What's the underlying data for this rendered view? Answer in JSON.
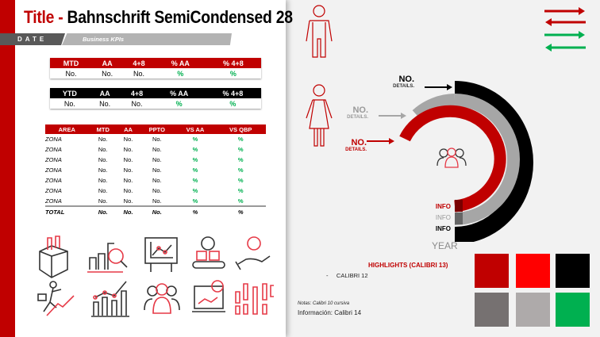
{
  "title": {
    "prefix": "Title - ",
    "main": "Bahnschrift SemiCondensed 28"
  },
  "header": {
    "date": "DATE",
    "subtitle": "Business KPIs"
  },
  "mtd_table": {
    "headers": [
      "MTD",
      "AA",
      "4+8",
      "% AA",
      "% 4+8"
    ],
    "row": [
      "No.",
      "No.",
      "No.",
      "%",
      "%"
    ]
  },
  "ytd_table": {
    "headers": [
      "YTD",
      "AA",
      "4+8",
      "% AA",
      "% 4+8"
    ],
    "row": [
      "No.",
      "No.",
      "No.",
      "%",
      "%"
    ]
  },
  "area_table": {
    "headers": [
      "AREA",
      "MTD",
      "AA",
      "PPTO",
      "VS AA",
      "VS QBP"
    ],
    "rows": [
      [
        "ZONA",
        "No.",
        "No.",
        "No.",
        "%",
        "%"
      ],
      [
        "ZONA",
        "No.",
        "No.",
        "No.",
        "%",
        "%"
      ],
      [
        "ZONA",
        "No.",
        "No.",
        "No.",
        "%",
        "%"
      ],
      [
        "ZONA",
        "No.",
        "No.",
        "No.",
        "%",
        "%"
      ],
      [
        "ZONA",
        "No.",
        "No.",
        "No.",
        "%",
        "%"
      ],
      [
        "ZONA",
        "No.",
        "No.",
        "No.",
        "%",
        "%"
      ],
      [
        "ZONA",
        "No.",
        "No.",
        "No.",
        "%",
        "%"
      ]
    ],
    "total": [
      "TOTAL",
      "No.",
      "No.",
      "No.",
      "%",
      "%"
    ]
  },
  "rings": {
    "outer": {
      "value": "NO.",
      "details": "DETAILS.",
      "info": "INFO",
      "color": "#000000"
    },
    "middle": {
      "value": "NO.",
      "details": "DETAILS.",
      "info": "INFO",
      "color": "#a6a6a6"
    },
    "inner": {
      "value": "NO.",
      "details": "DETAILS.",
      "info": "INFO",
      "color": "#c00000"
    },
    "year": "YEAR"
  },
  "highlights": {
    "title": "HIGHLIGHTS (CALIBRI 13)",
    "bullet": "CALIBRI 12"
  },
  "notes": "Notas: Calibri 10 cursiva",
  "info": "Información: Calibri 14",
  "palette": [
    "#c00000",
    "#ff0000",
    "#000000",
    "#767171",
    "#aeaaaa",
    "#00b050"
  ],
  "colors": {
    "accent": "#c00000",
    "positive": "#00b050"
  }
}
